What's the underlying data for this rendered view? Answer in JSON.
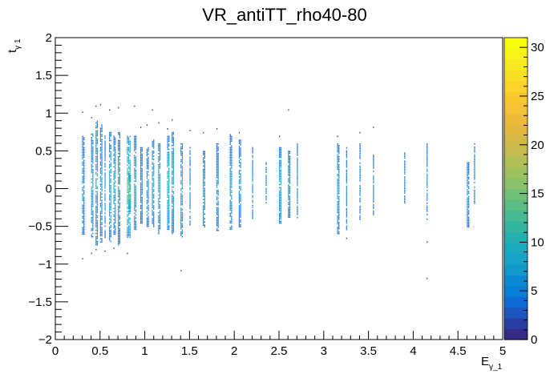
{
  "chart_data": {
    "type": "heatmap",
    "title": "VR_antiTT_rho40-80",
    "xlabel": {
      "main": "E",
      "sub": "γ_1"
    },
    "ylabel": {
      "main": "t",
      "sub": "γ 1"
    },
    "xlim": [
      0,
      5
    ],
    "ylim": [
      -2,
      2
    ],
    "zlim": [
      0,
      31
    ],
    "x_ticks": [
      {
        "v": 0,
        "label": "0"
      },
      {
        "v": 0.5,
        "label": "0.5"
      },
      {
        "v": 1,
        "label": "1"
      },
      {
        "v": 1.5,
        "label": "1.5"
      },
      {
        "v": 2,
        "label": "2"
      },
      {
        "v": 2.5,
        "label": "2.5"
      },
      {
        "v": 3,
        "label": "3"
      },
      {
        "v": 3.5,
        "label": "3.5"
      },
      {
        "v": 4,
        "label": "4"
      },
      {
        "v": 4.5,
        "label": "4.5"
      },
      {
        "v": 5,
        "label": "5"
      }
    ],
    "y_ticks": [
      {
        "v": 2,
        "label": "2"
      },
      {
        "v": 1.5,
        "label": "1.5"
      },
      {
        "v": 1,
        "label": "1"
      },
      {
        "v": 0.5,
        "label": "0.5"
      },
      {
        "v": 0,
        "label": "0"
      },
      {
        "v": -0.5,
        "label": "−0.5"
      },
      {
        "v": -1,
        "label": "−1"
      },
      {
        "v": -1.5,
        "label": "−1.5"
      },
      {
        "v": -2,
        "label": "−2"
      }
    ],
    "z_ticks": [
      {
        "v": 0,
        "label": "0"
      },
      {
        "v": 5,
        "label": "5"
      },
      {
        "v": 10,
        "label": "10"
      },
      {
        "v": 15,
        "label": "15"
      },
      {
        "v": 20,
        "label": "20"
      },
      {
        "v": 25,
        "label": "25"
      },
      {
        "v": 30,
        "label": "30"
      }
    ],
    "palette": [
      "#352a87",
      "#283fa1",
      "#1b55bd",
      "#0d6bd7",
      "#077ed8",
      "#0b8ad2",
      "#129acd",
      "#16a4c8",
      "#1aaabd",
      "#25b0b0",
      "#34b5a2",
      "#47b993",
      "#5cbd84",
      "#72c077",
      "#88c16a",
      "#9ec15f",
      "#b1bf57",
      "#c4bc4f",
      "#d4b947",
      "#e2b841",
      "#edbb3a",
      "#f5c135",
      "#f9ca2f",
      "#fad42b",
      "#f9de26",
      "#f8e821",
      "#f8f21b",
      "#f9fb0e"
    ],
    "columns": [
      {
        "x": 0.3,
        "ymin": -0.6,
        "ymax": 0.7,
        "w": 2,
        "level": 6,
        "outliers": [
          1.02,
          -0.92
        ]
      },
      {
        "x": 0.4,
        "ymin": -0.65,
        "ymax": 0.75,
        "w": 2,
        "level": 8,
        "outliers": [
          0.95,
          -0.85
        ]
      },
      {
        "x": 0.45,
        "ymin": -0.75,
        "ymax": 0.9,
        "w": 2,
        "level": 8,
        "outliers": [
          1.1,
          -0.8
        ]
      },
      {
        "x": 0.5,
        "ymin": -0.7,
        "ymax": 0.85,
        "w": 2,
        "level": 7,
        "outliers": [
          1.12
        ]
      },
      {
        "x": 0.55,
        "ymin": -0.65,
        "ymax": 0.7,
        "w": 1,
        "level": 6,
        "outliers": [
          -0.82
        ]
      },
      {
        "x": 0.6,
        "ymin": -0.7,
        "ymax": 0.75,
        "w": 2,
        "level": 9,
        "outliers": [
          1.05
        ]
      },
      {
        "x": 0.65,
        "ymin": -0.6,
        "ymax": 0.7,
        "w": 2,
        "level": 8,
        "outliers": [
          -0.78
        ]
      },
      {
        "x": 0.7,
        "ymin": -0.75,
        "ymax": 0.75,
        "w": 2,
        "level": 7,
        "outliers": [
          1.08
        ]
      },
      {
        "x": 0.8,
        "ymin": -0.65,
        "ymax": 0.7,
        "w": 3,
        "level": 13,
        "outliers": [
          -0.85
        ]
      },
      {
        "x": 0.82,
        "ymin": -0.3,
        "ymax": 0.2,
        "w": 2,
        "level": 15,
        "outliers": []
      },
      {
        "x": 0.88,
        "ymin": -0.55,
        "ymax": 0.7,
        "w": 2,
        "level": 8,
        "outliers": [
          1.1
        ]
      },
      {
        "x": 0.95,
        "ymin": -0.45,
        "ymax": 0.55,
        "w": 2,
        "level": 6,
        "outliers": [
          0.82
        ]
      },
      {
        "x": 1.02,
        "ymin": -0.5,
        "ymax": 0.55,
        "w": 2,
        "level": 7,
        "outliers": [
          0.85
        ]
      },
      {
        "x": 1.08,
        "ymin": -0.5,
        "ymax": 0.65,
        "w": 2,
        "level": 8,
        "outliers": [
          1.05
        ]
      },
      {
        "x": 1.15,
        "ymin": -0.6,
        "ymax": 0.6,
        "w": 2,
        "level": 8,
        "outliers": [
          0.88
        ]
      },
      {
        "x": 1.25,
        "ymin": -0.55,
        "ymax": 0.7,
        "w": 2,
        "level": 9,
        "outliers": [
          0.8
        ]
      },
      {
        "x": 1.3,
        "ymin": -0.6,
        "ymax": 0.75,
        "w": 2,
        "level": 8,
        "outliers": [
          0.92
        ]
      },
      {
        "x": 1.4,
        "ymin": -0.65,
        "ymax": 0.6,
        "w": 2,
        "level": 8,
        "outliers": [
          -1.08
        ]
      },
      {
        "x": 1.5,
        "ymin": -0.5,
        "ymax": 0.55,
        "w": 1,
        "level": 6,
        "outliers": [
          0.78
        ]
      },
      {
        "x": 1.65,
        "ymin": -0.5,
        "ymax": 0.5,
        "w": 2,
        "level": 7,
        "outliers": [
          0.75
        ]
      },
      {
        "x": 1.8,
        "ymin": -0.55,
        "ymax": 0.6,
        "w": 2,
        "level": 6,
        "outliers": [
          0.8
        ]
      },
      {
        "x": 1.95,
        "ymin": -0.55,
        "ymax": 0.7,
        "w": 2,
        "level": 7,
        "outliers": [
          0.72
        ]
      },
      {
        "x": 2.05,
        "ymin": -0.5,
        "ymax": 0.65,
        "w": 2,
        "level": 6,
        "outliers": [
          0.75
        ]
      },
      {
        "x": 2.2,
        "ymin": -0.4,
        "ymax": 0.55,
        "w": 1,
        "level": 6,
        "outliers": []
      },
      {
        "x": 2.35,
        "ymin": -0.2,
        "ymax": 0.35,
        "w": 1,
        "level": 5,
        "outliers": []
      },
      {
        "x": 2.5,
        "ymin": -0.45,
        "ymax": 0.55,
        "w": 2,
        "level": 8,
        "outliers": [
          0.7
        ]
      },
      {
        "x": 2.6,
        "ymin": -0.4,
        "ymax": 0.5,
        "w": 2,
        "level": 6,
        "outliers": [
          1.05
        ]
      },
      {
        "x": 2.7,
        "ymin": -0.45,
        "ymax": 0.6,
        "w": 1,
        "level": 6,
        "outliers": []
      },
      {
        "x": 3.15,
        "ymin": -0.6,
        "ymax": 0.6,
        "w": 2,
        "level": 7,
        "outliers": [
          0.7
        ]
      },
      {
        "x": 3.25,
        "ymin": -0.55,
        "ymax": 0.55,
        "w": 1,
        "level": 5,
        "outliers": [
          -0.65
        ]
      },
      {
        "x": 3.4,
        "ymin": -0.4,
        "ymax": 0.6,
        "w": 1,
        "level": 5,
        "outliers": [
          0.75
        ]
      },
      {
        "x": 3.55,
        "ymin": -0.35,
        "ymax": 0.45,
        "w": 1,
        "level": 5,
        "outliers": [
          0.82
        ]
      },
      {
        "x": 3.9,
        "ymin": -0.2,
        "ymax": 0.5,
        "w": 1,
        "level": 5,
        "outliers": []
      },
      {
        "x": 4.15,
        "ymin": -0.4,
        "ymax": 0.6,
        "w": 1,
        "level": 6,
        "outliers": [
          -0.7,
          -1.18
        ]
      },
      {
        "x": 4.6,
        "ymin": -0.5,
        "ymax": 0.35,
        "w": 2,
        "level": 6,
        "outliers": []
      },
      {
        "x": 4.68,
        "ymin": -0.2,
        "ymax": 0.6,
        "w": 1,
        "level": 5,
        "outliers": []
      }
    ]
  }
}
